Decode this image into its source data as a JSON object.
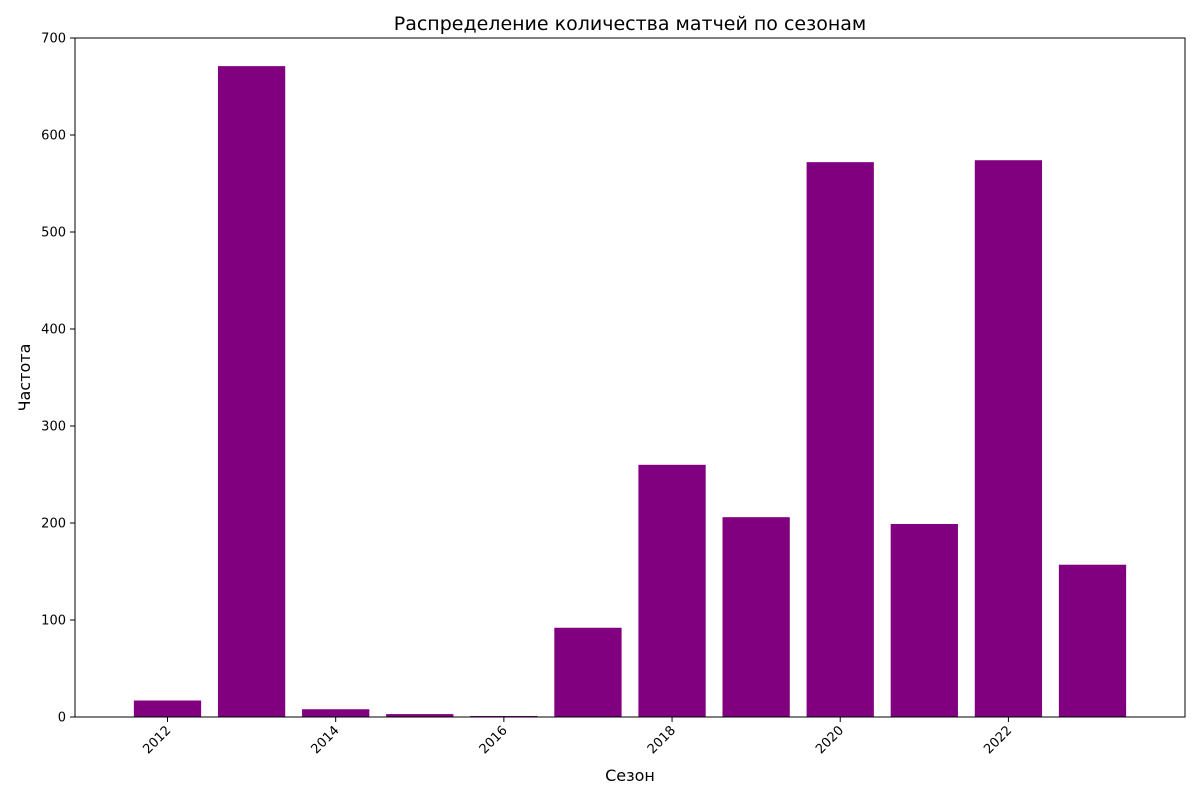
{
  "chart_data": {
    "type": "bar",
    "title": "Распределение количества матчей по сезонам",
    "xlabel": "Сезон",
    "ylabel": "Частота",
    "x": [
      2012,
      2013,
      2014,
      2015,
      2016,
      2017,
      2018,
      2019,
      2020,
      2021,
      2022,
      2023
    ],
    "values": [
      17,
      671,
      8,
      3,
      1,
      92,
      260,
      206,
      572,
      199,
      574,
      157
    ],
    "xlim": [
      2010.9,
      2024.1
    ],
    "ylim": [
      0,
      700
    ],
    "xticks": [
      2012,
      2014,
      2016,
      2018,
      2020,
      2022
    ],
    "yticks": [
      0,
      100,
      200,
      300,
      400,
      500,
      600,
      700
    ],
    "bar_color": "#800080",
    "grid": false,
    "legend": null
  }
}
